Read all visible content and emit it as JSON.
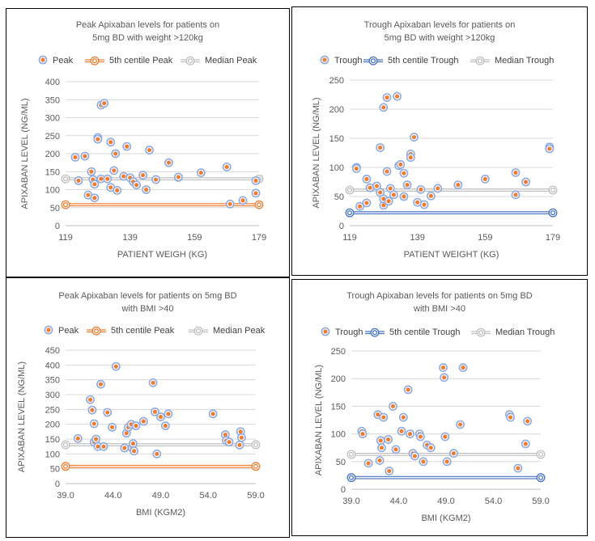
{
  "chart_data": [
    {
      "type": "scatter",
      "title": "Peak Apixaban levels for patients on 5mg BD with weight >120kg",
      "title_lines": [
        "Peak Apixaban levels for patients on",
        "5mg BD with weight >120kg"
      ],
      "xlabel": "PATIENT WEIGH (KG)",
      "ylabel": "APIXABAN LEVEL (NG/ML)",
      "xlim": [
        119,
        179
      ],
      "ylim": [
        0,
        400
      ],
      "xticks": [
        "119",
        "139",
        "159",
        "179"
      ],
      "yticks": [
        "0",
        "50",
        "100",
        "150",
        "200",
        "250",
        "300",
        "350",
        "400"
      ],
      "grid": "horizontal",
      "legend_position": "top",
      "series": [
        {
          "name": "Peak",
          "marker": "peak",
          "x": [
            122,
            123,
            125,
            126,
            127,
            127.5,
            128,
            128,
            129,
            129,
            130,
            130,
            131,
            132,
            133,
            133,
            134,
            134.5,
            135,
            137,
            138,
            139,
            140,
            141,
            143,
            144,
            145,
            147,
            151,
            154,
            154,
            161,
            169,
            170,
            174,
            178,
            178
          ],
          "y": [
            190,
            125,
            193,
            85,
            150,
            128,
            77,
            115,
            245,
            240,
            130,
            335,
            340,
            130,
            106,
            232,
            153,
            200,
            98,
            137,
            220,
            133,
            122,
            113,
            140,
            100,
            210,
            128,
            175,
            134,
            135,
            147,
            163,
            60,
            70,
            125,
            90
          ]
        },
        {
          "name": "5th centile Peak",
          "marker": "line-orange",
          "x": [
            119,
            179
          ],
          "y": [
            58,
            58
          ]
        },
        {
          "name": "Median Peak",
          "marker": "line-grey",
          "x": [
            119,
            179
          ],
          "y": [
            130,
            130
          ]
        }
      ]
    },
    {
      "type": "scatter",
      "title": "Trough Apixaban levels for patients on 5mg BD with weight >120kg",
      "title_lines": [
        "Trough Apixaban levels for patients on",
        "5mg BD with weight >120kg"
      ],
      "xlabel": "PATIENT WEIGHT (KG)",
      "ylabel": "APIXABAN LEVEL (NG/ML)",
      "xlim": [
        119,
        179
      ],
      "ylim": [
        0,
        250
      ],
      "xticks": [
        "119",
        "139",
        "159",
        "179"
      ],
      "yticks": [
        "0",
        "50",
        "100",
        "150",
        "200",
        "250"
      ],
      "grid": "horizontal",
      "legend_position": "top",
      "series": [
        {
          "name": "Trough",
          "marker": "trough",
          "x": [
            121,
            121,
            122,
            124,
            124,
            125,
            127,
            128,
            128,
            129,
            129,
            129,
            130,
            130,
            130.5,
            131,
            132,
            133,
            133.5,
            134,
            135,
            135,
            136,
            137,
            137,
            138,
            139,
            140,
            141,
            143,
            145,
            151,
            159,
            168,
            168,
            171,
            178,
            178
          ],
          "y": [
            100,
            98,
            33,
            80,
            39,
            65,
            68,
            134,
            57,
            35,
            46,
            203,
            220,
            93,
            42,
            64,
            53,
            222,
            103,
            105,
            90,
            50,
            70,
            123,
            117,
            152,
            40,
            62,
            36,
            51,
            64,
            70,
            80,
            91,
            53,
            75,
            135,
            132
          ]
        },
        {
          "name": "5th centile Trough",
          "marker": "line-blue",
          "x": [
            119,
            179
          ],
          "y": [
            22,
            22
          ]
        },
        {
          "name": "Median Trough",
          "marker": "line-grey",
          "x": [
            119,
            179
          ],
          "y": [
            61,
            61
          ]
        }
      ]
    },
    {
      "type": "scatter",
      "title": "Peak Apixaban levels for patients on 5mg BD with BMI >40",
      "title_lines": [
        "Peak Apixaban levels for patients on 5mg BD",
        "with BMI >40"
      ],
      "xlabel": "BMI (KGM2)",
      "ylabel": "APIXABAN LEVEL (NG/ML)",
      "xlim": [
        39,
        59
      ],
      "ylim": [
        0,
        450
      ],
      "xticks": [
        "39.0",
        "44.0",
        "49.0",
        "54.0",
        "59.0"
      ],
      "yticks": [
        "0",
        "50",
        "100",
        "150",
        "200",
        "250",
        "300",
        "350",
        "400",
        "450"
      ],
      "grid": "horizontal",
      "legend_position": "top",
      "series": [
        {
          "name": "Peak",
          "marker": "peak",
          "x": [
            40.3,
            41.6,
            41.8,
            42.0,
            42.0,
            42.2,
            42.4,
            42.7,
            43.0,
            43.4,
            43.9,
            44.3,
            45.2,
            45.4,
            45.6,
            45.9,
            46.0,
            46.1,
            46.2,
            46.4,
            47.2,
            48.2,
            48.4,
            48.6,
            49.0,
            49.5,
            49.8,
            54.5,
            55.8,
            55.9,
            56.2,
            57.3,
            57.4,
            57.5
          ],
          "y": [
            152,
            283,
            248,
            202,
            140,
            150,
            125,
            335,
            125,
            240,
            190,
            395,
            120,
            170,
            190,
            200,
            120,
            135,
            110,
            195,
            210,
            340,
            242,
            100,
            225,
            195,
            235,
            235,
            165,
            145,
            140,
            130,
            175,
            155
          ]
        },
        {
          "name": "5th centile Peak",
          "marker": "line-orange",
          "x": [
            39,
            59
          ],
          "y": [
            58,
            58
          ]
        },
        {
          "name": "Median Peak",
          "marker": "line-grey",
          "x": [
            39,
            59
          ],
          "y": [
            131,
            131
          ]
        }
      ]
    },
    {
      "type": "scatter",
      "title": "Trough Apixaban levels for patients on 5mg BD with BMI >40",
      "title_lines": [
        "Trough Apixaban levels for patients on 5mg BD",
        "with BMI >40"
      ],
      "xlabel": "BMI (KGM2)",
      "ylabel": "APIXABAN LEVEL (NG/ML)",
      "xlim": [
        39,
        59
      ],
      "ylim": [
        0,
        250
      ],
      "xticks": [
        "39.0",
        "44.0",
        "49.0",
        "54.0",
        "59.0"
      ],
      "yticks": [
        "0",
        "50",
        "100",
        "150",
        "200",
        "250"
      ],
      "grid": "horizontal",
      "legend_position": "top",
      "series": [
        {
          "name": "Trough",
          "marker": "trough",
          "x": [
            40.1,
            40.2,
            40.8,
            41.8,
            42.0,
            42.1,
            42.2,
            42.4,
            42.9,
            43.0,
            43.4,
            43.7,
            44.3,
            44.5,
            45.0,
            45.2,
            45.5,
            45.7,
            46.2,
            46.3,
            46.6,
            47.0,
            47.4,
            48.7,
            48.8,
            48.9,
            49.1,
            49.8,
            50.5,
            50.8,
            55.7,
            55.8,
            56.6,
            57.4,
            57.6
          ],
          "y": [
            105,
            100,
            47,
            135,
            52,
            88,
            75,
            130,
            90,
            33,
            150,
            72,
            105,
            130,
            180,
            100,
            65,
            60,
            100,
            95,
            50,
            80,
            75,
            220,
            202,
            95,
            50,
            65,
            117,
            220,
            135,
            130,
            38,
            82,
            123
          ]
        },
        {
          "name": "5th centile Trough",
          "marker": "line-blue",
          "x": [
            39,
            59
          ],
          "y": [
            21,
            21
          ]
        },
        {
          "name": "Median Trough",
          "marker": "line-grey",
          "x": [
            39,
            59
          ],
          "y": [
            63,
            63
          ]
        }
      ]
    }
  ],
  "colors": {
    "point_fill": "#ED7D31",
    "point_ring": "#8FAADC",
    "fifth_centile_peak": "#ED7D31",
    "fifth_centile_trough": "#4472C4",
    "median": "#BFBFBF",
    "grid": "#D9D9D9",
    "text": "#595959"
  }
}
